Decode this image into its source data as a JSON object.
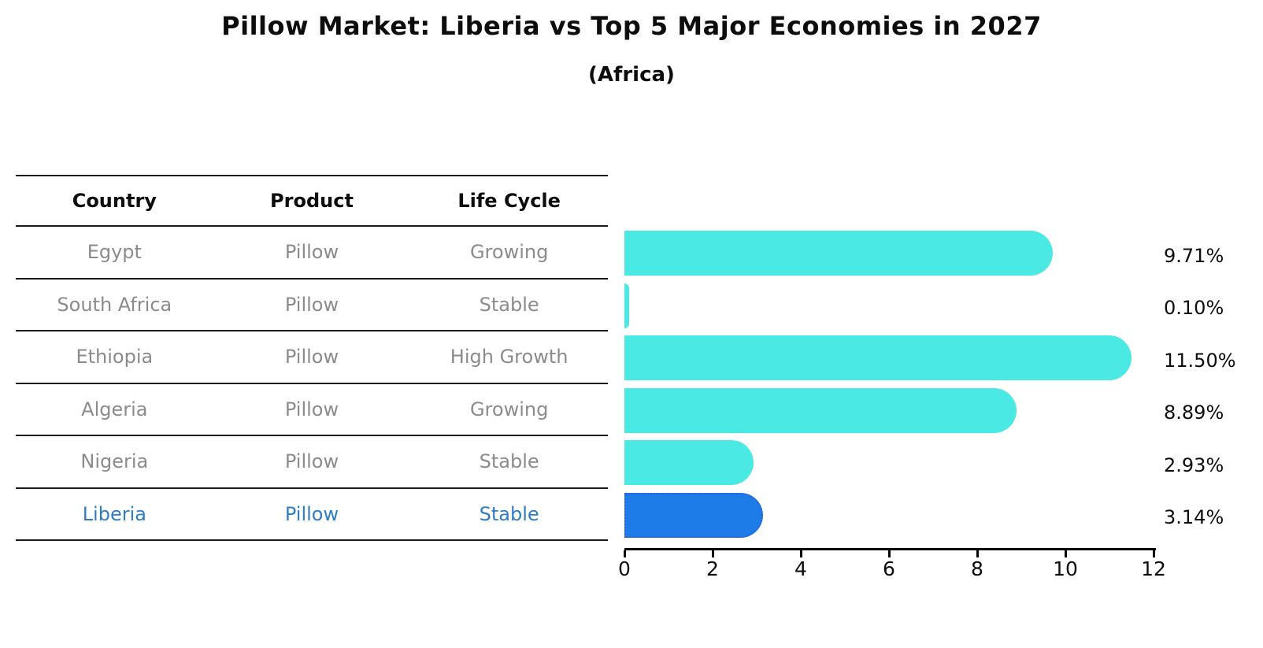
{
  "title": "Pillow Market: Liberia vs Top 5 Major Economies in 2027",
  "subtitle": "(Africa)",
  "colors": {
    "bar": "#4be9e3",
    "highlight_bar": "#1e7ce8",
    "highlight_bar_border": "#2264d8",
    "table_text": "#8b8b8b",
    "highlight_text": "#2e7ec7",
    "axis": "#000000",
    "heading_text": "#0d0d0d"
  },
  "table": {
    "headers": [
      "Country",
      "Product",
      "Life Cycle"
    ],
    "rows": [
      {
        "country": "Egypt",
        "product": "Pillow",
        "life_cycle": "Growing",
        "highlight": false
      },
      {
        "country": "South Africa",
        "product": "Pillow",
        "life_cycle": "Stable",
        "highlight": false
      },
      {
        "country": "Ethiopia",
        "product": "Pillow",
        "life_cycle": "High Growth",
        "highlight": false
      },
      {
        "country": "Algeria",
        "product": "Pillow",
        "life_cycle": "Growing",
        "highlight": false
      },
      {
        "country": "Nigeria",
        "product": "Pillow",
        "life_cycle": "Stable",
        "highlight": false
      },
      {
        "country": "Liberia",
        "product": "Pillow",
        "life_cycle": "Stable",
        "highlight": true
      }
    ]
  },
  "chart_data": {
    "type": "bar",
    "orientation": "horizontal",
    "title": "Pillow Market: Liberia vs Top 5 Major Economies in 2027",
    "subtitle": "(Africa)",
    "categories": [
      "Egypt",
      "South Africa",
      "Ethiopia",
      "Algeria",
      "Nigeria",
      "Liberia"
    ],
    "values": [
      9.71,
      0.1,
      11.5,
      8.89,
      2.93,
      3.14
    ],
    "value_labels": [
      "9.71%",
      "0.10%",
      "11.50%",
      "8.89%",
      "2.93%",
      "3.14%"
    ],
    "highlight_index": 5,
    "xlabel": "",
    "ylabel": "",
    "xlim": [
      0,
      12
    ],
    "x_ticks": [
      0,
      2,
      4,
      6,
      8,
      10,
      12
    ],
    "grid": false,
    "legend": false
  }
}
